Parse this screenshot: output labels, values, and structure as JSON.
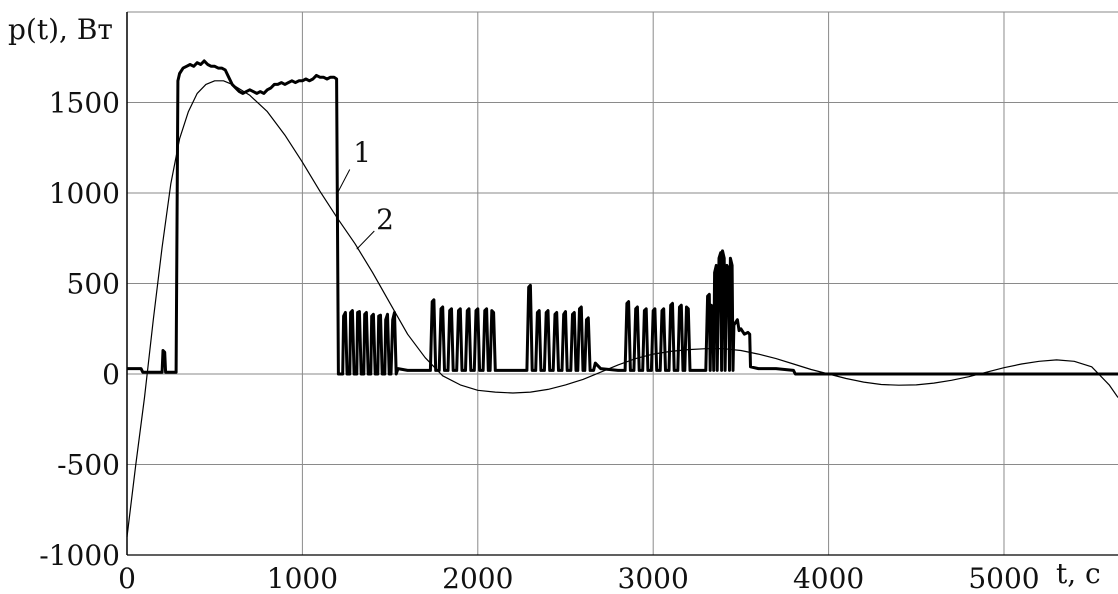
{
  "chart_data": {
    "type": "line",
    "ylabel": "p(t), Вт",
    "xlabel": "t, с",
    "xlim": [
      0,
      5650
    ],
    "ylim": [
      -1000,
      2000
    ],
    "grid": true,
    "x_ticks": [
      0,
      1000,
      2000,
      3000,
      4000,
      5000
    ],
    "x_tick_labels": [
      "0",
      "1000",
      "2000",
      "3000",
      "4000",
      "5000"
    ],
    "y_ticks": [
      -1000,
      -500,
      0,
      500,
      1000,
      1500
    ],
    "y_tick_labels": [
      "-1000",
      "-500",
      "0",
      "500",
      "1000",
      "1500"
    ],
    "annotations": [
      {
        "text": "1",
        "target_series": "1"
      },
      {
        "text": "2",
        "target_series": "2"
      }
    ],
    "series": [
      {
        "name": "1",
        "style": "thick",
        "points": [
          [
            0,
            30
          ],
          [
            80,
            30
          ],
          [
            90,
            10
          ],
          [
            200,
            10
          ],
          [
            205,
            130
          ],
          [
            215,
            120
          ],
          [
            220,
            10
          ],
          [
            280,
            10
          ],
          [
            290,
            1620
          ],
          [
            300,
            1660
          ],
          [
            320,
            1690
          ],
          [
            340,
            1700
          ],
          [
            360,
            1710
          ],
          [
            380,
            1700
          ],
          [
            400,
            1720
          ],
          [
            420,
            1710
          ],
          [
            440,
            1730
          ],
          [
            460,
            1710
          ],
          [
            480,
            1700
          ],
          [
            500,
            1700
          ],
          [
            520,
            1690
          ],
          [
            540,
            1690
          ],
          [
            560,
            1680
          ],
          [
            580,
            1640
          ],
          [
            600,
            1600
          ],
          [
            620,
            1580
          ],
          [
            640,
            1560
          ],
          [
            660,
            1550
          ],
          [
            680,
            1560
          ],
          [
            700,
            1570
          ],
          [
            720,
            1560
          ],
          [
            740,
            1550
          ],
          [
            760,
            1560
          ],
          [
            780,
            1550
          ],
          [
            800,
            1570
          ],
          [
            820,
            1580
          ],
          [
            840,
            1600
          ],
          [
            860,
            1600
          ],
          [
            880,
            1610
          ],
          [
            900,
            1600
          ],
          [
            920,
            1610
          ],
          [
            940,
            1620
          ],
          [
            960,
            1610
          ],
          [
            980,
            1620
          ],
          [
            1000,
            1620
          ],
          [
            1020,
            1630
          ],
          [
            1040,
            1620
          ],
          [
            1060,
            1630
          ],
          [
            1080,
            1650
          ],
          [
            1100,
            1640
          ],
          [
            1120,
            1640
          ],
          [
            1140,
            1630
          ],
          [
            1160,
            1640
          ],
          [
            1180,
            1640
          ],
          [
            1195,
            1630
          ],
          [
            1205,
            0
          ],
          [
            1230,
            0
          ],
          [
            1235,
            320
          ],
          [
            1245,
            340
          ],
          [
            1255,
            0
          ],
          [
            1270,
            0
          ],
          [
            1275,
            340
          ],
          [
            1285,
            350
          ],
          [
            1295,
            0
          ],
          [
            1310,
            0
          ],
          [
            1315,
            340
          ],
          [
            1325,
            345
          ],
          [
            1335,
            0
          ],
          [
            1350,
            0
          ],
          [
            1355,
            330
          ],
          [
            1365,
            340
          ],
          [
            1375,
            0
          ],
          [
            1390,
            0
          ],
          [
            1395,
            320
          ],
          [
            1405,
            330
          ],
          [
            1415,
            0
          ],
          [
            1430,
            0
          ],
          [
            1435,
            320
          ],
          [
            1445,
            325
          ],
          [
            1455,
            0
          ],
          [
            1470,
            0
          ],
          [
            1475,
            300
          ],
          [
            1485,
            330
          ],
          [
            1495,
            0
          ],
          [
            1505,
            0
          ],
          [
            1515,
            300
          ],
          [
            1525,
            340
          ],
          [
            1535,
            0
          ],
          [
            1545,
            30
          ],
          [
            1600,
            20
          ],
          [
            1700,
            20
          ],
          [
            1730,
            20
          ],
          [
            1740,
            400
          ],
          [
            1750,
            410
          ],
          [
            1760,
            20
          ],
          [
            1780,
            20
          ],
          [
            1790,
            360
          ],
          [
            1800,
            370
          ],
          [
            1810,
            20
          ],
          [
            1830,
            20
          ],
          [
            1840,
            350
          ],
          [
            1850,
            360
          ],
          [
            1860,
            20
          ],
          [
            1880,
            20
          ],
          [
            1890,
            350
          ],
          [
            1900,
            360
          ],
          [
            1910,
            20
          ],
          [
            1930,
            20
          ],
          [
            1940,
            350
          ],
          [
            1950,
            360
          ],
          [
            1960,
            20
          ],
          [
            1980,
            20
          ],
          [
            1990,
            350
          ],
          [
            2000,
            360
          ],
          [
            2010,
            20
          ],
          [
            2030,
            20
          ],
          [
            2040,
            350
          ],
          [
            2050,
            360
          ],
          [
            2060,
            20
          ],
          [
            2070,
            20
          ],
          [
            2080,
            350
          ],
          [
            2090,
            340
          ],
          [
            2100,
            20
          ],
          [
            2150,
            20
          ],
          [
            2250,
            20
          ],
          [
            2280,
            20
          ],
          [
            2290,
            480
          ],
          [
            2300,
            490
          ],
          [
            2310,
            20
          ],
          [
            2330,
            20
          ],
          [
            2340,
            340
          ],
          [
            2350,
            350
          ],
          [
            2360,
            20
          ],
          [
            2380,
            20
          ],
          [
            2390,
            340
          ],
          [
            2400,
            350
          ],
          [
            2410,
            20
          ],
          [
            2430,
            20
          ],
          [
            2440,
            330
          ],
          [
            2450,
            340
          ],
          [
            2460,
            20
          ],
          [
            2480,
            20
          ],
          [
            2490,
            330
          ],
          [
            2500,
            345
          ],
          [
            2510,
            20
          ],
          [
            2530,
            20
          ],
          [
            2540,
            330
          ],
          [
            2550,
            340
          ],
          [
            2560,
            20
          ],
          [
            2570,
            20
          ],
          [
            2580,
            360
          ],
          [
            2590,
            370
          ],
          [
            2600,
            20
          ],
          [
            2610,
            20
          ],
          [
            2620,
            300
          ],
          [
            2630,
            310
          ],
          [
            2640,
            20
          ],
          [
            2660,
            20
          ],
          [
            2670,
            60
          ],
          [
            2700,
            30
          ],
          [
            2800,
            20
          ],
          [
            2840,
            20
          ],
          [
            2850,
            390
          ],
          [
            2860,
            400
          ],
          [
            2870,
            20
          ],
          [
            2890,
            20
          ],
          [
            2900,
            360
          ],
          [
            2910,
            370
          ],
          [
            2920,
            20
          ],
          [
            2940,
            20
          ],
          [
            2950,
            350
          ],
          [
            2960,
            360
          ],
          [
            2970,
            20
          ],
          [
            2990,
            20
          ],
          [
            3000,
            350
          ],
          [
            3010,
            360
          ],
          [
            3020,
            20
          ],
          [
            3040,
            20
          ],
          [
            3050,
            350
          ],
          [
            3060,
            360
          ],
          [
            3070,
            20
          ],
          [
            3090,
            20
          ],
          [
            3100,
            380
          ],
          [
            3110,
            390
          ],
          [
            3120,
            20
          ],
          [
            3140,
            20
          ],
          [
            3150,
            370
          ],
          [
            3160,
            380
          ],
          [
            3170,
            20
          ],
          [
            3180,
            20
          ],
          [
            3190,
            370
          ],
          [
            3200,
            360
          ],
          [
            3210,
            20
          ],
          [
            3250,
            20
          ],
          [
            3300,
            20
          ],
          [
            3310,
            430
          ],
          [
            3320,
            440
          ],
          [
            3325,
            20
          ],
          [
            3330,
            380
          ],
          [
            3340,
            370
          ],
          [
            3345,
            20
          ],
          [
            3350,
            560
          ],
          [
            3360,
            600
          ],
          [
            3365,
            20
          ],
          [
            3375,
            640
          ],
          [
            3385,
            670
          ],
          [
            3390,
            20
          ],
          [
            3395,
            680
          ],
          [
            3405,
            640
          ],
          [
            3410,
            20
          ],
          [
            3420,
            600
          ],
          [
            3430,
            580
          ],
          [
            3435,
            20
          ],
          [
            3440,
            640
          ],
          [
            3450,
            600
          ],
          [
            3455,
            20
          ],
          [
            3460,
            270
          ],
          [
            3480,
            300
          ],
          [
            3490,
            240
          ],
          [
            3500,
            250
          ],
          [
            3520,
            220
          ],
          [
            3540,
            230
          ],
          [
            3550,
            220
          ],
          [
            3555,
            40
          ],
          [
            3600,
            30
          ],
          [
            3700,
            30
          ],
          [
            3800,
            20
          ],
          [
            3810,
            0
          ],
          [
            3900,
            0
          ],
          [
            4500,
            0
          ],
          [
            5000,
            0
          ],
          [
            5650,
            0
          ]
        ]
      },
      {
        "name": "2",
        "style": "thin",
        "points": [
          [
            0,
            -900
          ],
          [
            50,
            -500
          ],
          [
            100,
            -130
          ],
          [
            150,
            300
          ],
          [
            200,
            700
          ],
          [
            250,
            1050
          ],
          [
            300,
            1300
          ],
          [
            350,
            1450
          ],
          [
            400,
            1550
          ],
          [
            450,
            1600
          ],
          [
            500,
            1620
          ],
          [
            550,
            1620
          ],
          [
            600,
            1600
          ],
          [
            700,
            1540
          ],
          [
            800,
            1450
          ],
          [
            900,
            1320
          ],
          [
            1000,
            1170
          ],
          [
            1100,
            1010
          ],
          [
            1200,
            860
          ],
          [
            1300,
            720
          ],
          [
            1400,
            560
          ],
          [
            1500,
            390
          ],
          [
            1600,
            220
          ],
          [
            1700,
            90
          ],
          [
            1800,
            -10
          ],
          [
            1900,
            -60
          ],
          [
            2000,
            -90
          ],
          [
            2100,
            -100
          ],
          [
            2200,
            -105
          ],
          [
            2300,
            -100
          ],
          [
            2400,
            -85
          ],
          [
            2500,
            -60
          ],
          [
            2600,
            -30
          ],
          [
            2700,
            10
          ],
          [
            2800,
            50
          ],
          [
            2900,
            85
          ],
          [
            3000,
            110
          ],
          [
            3100,
            125
          ],
          [
            3200,
            135
          ],
          [
            3300,
            140
          ],
          [
            3400,
            140
          ],
          [
            3500,
            130
          ],
          [
            3600,
            110
          ],
          [
            3700,
            85
          ],
          [
            3800,
            55
          ],
          [
            3900,
            25
          ],
          [
            4000,
            0
          ],
          [
            4100,
            -25
          ],
          [
            4200,
            -45
          ],
          [
            4300,
            -58
          ],
          [
            4400,
            -62
          ],
          [
            4500,
            -60
          ],
          [
            4600,
            -50
          ],
          [
            4700,
            -35
          ],
          [
            4800,
            -15
          ],
          [
            4900,
            10
          ],
          [
            5000,
            35
          ],
          [
            5100,
            55
          ],
          [
            5200,
            70
          ],
          [
            5300,
            78
          ],
          [
            5400,
            70
          ],
          [
            5500,
            40
          ],
          [
            5600,
            -60
          ],
          [
            5650,
            -130
          ]
        ]
      }
    ]
  }
}
